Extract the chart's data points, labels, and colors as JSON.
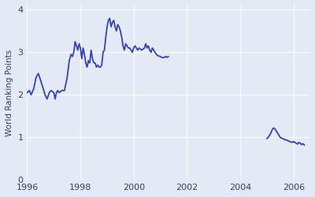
{
  "ylabel": "World Ranking Points",
  "xlabel": "",
  "background_color": "#e4eaf5",
  "line_color": "#3344bb",
  "line_width": 1.3,
  "xlim": [
    1996,
    2006.6
  ],
  "ylim": [
    0,
    4.1
  ],
  "yticks": [
    0,
    1,
    2,
    3,
    4
  ],
  "xticks": [
    1996,
    1998,
    2000,
    2002,
    2004,
    2006
  ],
  "grid_color": "#ffffff",
  "segment1": [
    [
      1996.0,
      2.05
    ],
    [
      1996.08,
      2.1
    ],
    [
      1996.15,
      2.0
    ],
    [
      1996.25,
      2.15
    ],
    [
      1996.33,
      2.4
    ],
    [
      1996.42,
      2.5
    ],
    [
      1996.5,
      2.35
    ],
    [
      1996.6,
      2.15
    ],
    [
      1996.67,
      2.0
    ],
    [
      1996.75,
      1.9
    ],
    [
      1996.83,
      2.05
    ],
    [
      1996.9,
      2.1
    ],
    [
      1997.0,
      2.05
    ],
    [
      1997.05,
      1.9
    ],
    [
      1997.1,
      2.05
    ],
    [
      1997.15,
      2.1
    ],
    [
      1997.2,
      2.05
    ],
    [
      1997.3,
      2.1
    ],
    [
      1997.4,
      2.1
    ],
    [
      1997.5,
      2.4
    ],
    [
      1997.58,
      2.8
    ],
    [
      1997.65,
      2.95
    ],
    [
      1997.7,
      2.9
    ],
    [
      1997.75,
      3.0
    ],
    [
      1997.8,
      3.25
    ],
    [
      1997.85,
      3.15
    ],
    [
      1997.9,
      3.05
    ],
    [
      1997.95,
      3.2
    ],
    [
      1998.0,
      3.1
    ],
    [
      1998.05,
      2.85
    ],
    [
      1998.1,
      3.1
    ],
    [
      1998.15,
      2.95
    ],
    [
      1998.2,
      2.75
    ],
    [
      1998.25,
      2.65
    ],
    [
      1998.3,
      2.8
    ],
    [
      1998.35,
      2.75
    ],
    [
      1998.4,
      3.05
    ],
    [
      1998.45,
      2.85
    ],
    [
      1998.5,
      2.75
    ],
    [
      1998.55,
      2.75
    ],
    [
      1998.6,
      2.65
    ],
    [
      1998.65,
      2.7
    ],
    [
      1998.7,
      2.65
    ],
    [
      1998.75,
      2.65
    ],
    [
      1998.8,
      2.7
    ],
    [
      1998.85,
      3.0
    ],
    [
      1998.9,
      3.05
    ],
    [
      1998.95,
      3.35
    ],
    [
      1999.0,
      3.6
    ],
    [
      1999.05,
      3.75
    ],
    [
      1999.1,
      3.8
    ],
    [
      1999.15,
      3.6
    ],
    [
      1999.2,
      3.7
    ],
    [
      1999.25,
      3.75
    ],
    [
      1999.3,
      3.6
    ],
    [
      1999.35,
      3.5
    ],
    [
      1999.4,
      3.65
    ],
    [
      1999.45,
      3.6
    ],
    [
      1999.5,
      3.5
    ],
    [
      1999.55,
      3.35
    ],
    [
      1999.6,
      3.15
    ],
    [
      1999.65,
      3.05
    ],
    [
      1999.7,
      3.2
    ],
    [
      1999.75,
      3.15
    ],
    [
      1999.8,
      3.1
    ],
    [
      1999.85,
      3.1
    ],
    [
      1999.9,
      3.05
    ],
    [
      1999.95,
      3.0
    ],
    [
      2000.0,
      3.1
    ],
    [
      2000.05,
      3.15
    ],
    [
      2000.1,
      3.1
    ],
    [
      2000.15,
      3.05
    ],
    [
      2000.2,
      3.1
    ],
    [
      2000.3,
      3.05
    ],
    [
      2000.4,
      3.1
    ],
    [
      2000.45,
      3.2
    ],
    [
      2000.5,
      3.1
    ],
    [
      2000.55,
      3.15
    ],
    [
      2000.6,
      3.05
    ],
    [
      2000.65,
      3.0
    ],
    [
      2000.7,
      3.1
    ],
    [
      2000.75,
      3.05
    ],
    [
      2000.8,
      3.0
    ],
    [
      2000.85,
      2.95
    ],
    [
      2000.9,
      2.92
    ],
    [
      2001.0,
      2.9
    ],
    [
      2001.05,
      2.88
    ],
    [
      2001.1,
      2.87
    ],
    [
      2001.15,
      2.88
    ],
    [
      2001.2,
      2.9
    ],
    [
      2001.25,
      2.88
    ],
    [
      2001.3,
      2.9
    ]
  ],
  "segment2": [
    [
      2005.0,
      0.97
    ],
    [
      2005.05,
      1.0
    ],
    [
      2005.1,
      1.05
    ],
    [
      2005.15,
      1.1
    ],
    [
      2005.2,
      1.18
    ],
    [
      2005.25,
      1.22
    ],
    [
      2005.3,
      1.2
    ],
    [
      2005.35,
      1.15
    ],
    [
      2005.4,
      1.1
    ],
    [
      2005.45,
      1.05
    ],
    [
      2005.5,
      1.0
    ],
    [
      2005.55,
      0.98
    ],
    [
      2005.6,
      0.97
    ],
    [
      2005.65,
      0.95
    ],
    [
      2005.7,
      0.94
    ],
    [
      2005.75,
      0.93
    ],
    [
      2005.8,
      0.92
    ],
    [
      2005.85,
      0.9
    ],
    [
      2005.9,
      0.89
    ],
    [
      2005.95,
      0.88
    ],
    [
      2006.0,
      0.9
    ],
    [
      2006.05,
      0.88
    ],
    [
      2006.1,
      0.86
    ],
    [
      2006.15,
      0.84
    ],
    [
      2006.2,
      0.88
    ],
    [
      2006.25,
      0.86
    ],
    [
      2006.3,
      0.83
    ],
    [
      2006.35,
      0.85
    ],
    [
      2006.4,
      0.82
    ]
  ]
}
